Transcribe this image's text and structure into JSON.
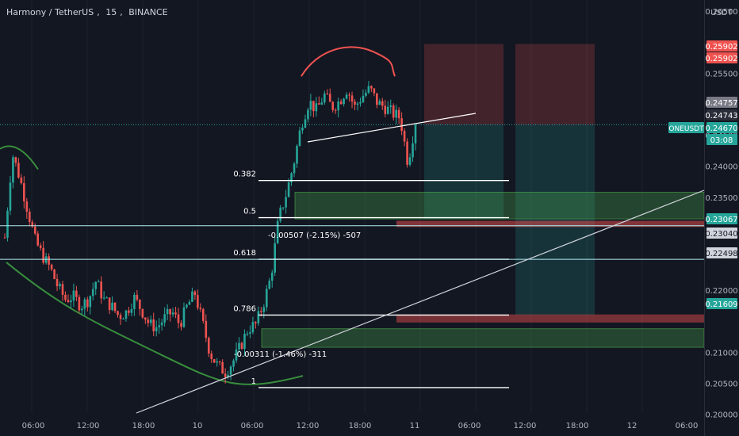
{
  "header": {
    "symbol": "Harmony / TetherUS",
    "interval": "15",
    "exchange": "BINANCE"
  },
  "colors": {
    "background": "#131722",
    "up": "#26a69a",
    "down": "#ef5350",
    "grid": "#1e222d",
    "text": "#b2b5be"
  },
  "price_axis": {
    "currency": "USDT",
    "badges": [
      {
        "text": "0.25902",
        "bg": "#ef5350",
        "fg": "#ffffff"
      },
      {
        "text": "0.25902",
        "bg": "#ef5350",
        "fg": "#ffffff"
      },
      {
        "text": "0.24757",
        "bg": "#787b86",
        "fg": "#ffffff"
      },
      {
        "text": "0.24743",
        "bg": "#2a2e39",
        "fg": "#ffffff"
      },
      {
        "text": "0.24670",
        "bg": "#26a69a",
        "fg": "#ffffff"
      },
      {
        "text": "03:08",
        "bg": "#26a69a",
        "fg": "#ffffff"
      },
      {
        "text": "0.23067",
        "bg": "#26a69a",
        "fg": "#ffffff"
      },
      {
        "text": "0.23040",
        "bg": "#d1d4dc",
        "fg": "#131722"
      },
      {
        "text": "0.22498",
        "bg": "#d1d4dc",
        "fg": "#131722"
      },
      {
        "text": "0.21609",
        "bg": "#26a69a",
        "fg": "#ffffff"
      }
    ],
    "symbol_badge": "ONEUSDT"
  },
  "annotations": {
    "fib_labels": [
      "0.382",
      "0.5",
      "0.618",
      "0.786",
      "1"
    ],
    "measure_1": "-0.00507 (-2.15%) -507",
    "measure_2": "-0.00311 (-1.46%) -311"
  },
  "chart_data": {
    "type": "candlestick",
    "title": "Harmony / TetherUS, 15, BINANCE",
    "ylim": [
      0.1965,
      0.2668
    ],
    "y_ticks": [
      "0.26500",
      "0.25500",
      "0.25000",
      "0.24500",
      "0.24000",
      "0.23500",
      "0.22000",
      "0.21000",
      "0.20500",
      "0.20000"
    ],
    "x_ticks": [
      "06:00",
      "12:00",
      "18:00",
      "10",
      "06:00",
      "12:00",
      "18:00",
      "11",
      "06:00",
      "12:00",
      "18:00",
      "12",
      "06:00"
    ],
    "grid": false,
    "current_price": 0.2467,
    "fib_levels": [
      {
        "ratio": "0.382",
        "price": 0.2377
      },
      {
        "ratio": "0.5",
        "price": 0.2317
      },
      {
        "ratio": "0.618",
        "price": 0.225
      },
      {
        "ratio": "0.786",
        "price": 0.216
      },
      {
        "ratio": "1",
        "price": 0.2043
      }
    ],
    "horizontal_lines": [
      0.2304,
      0.22498
    ],
    "price_path": [
      0.2285,
      0.242,
      0.238,
      0.233,
      0.228,
      0.2255,
      0.2235,
      0.2205,
      0.2185,
      0.219,
      0.2175,
      0.2185,
      0.2215,
      0.2185,
      0.2175,
      0.2158,
      0.2165,
      0.2188,
      0.2168,
      0.2145,
      0.214,
      0.2155,
      0.2165,
      0.2145,
      0.2175,
      0.2195,
      0.2148,
      0.2098,
      0.2078,
      0.2068,
      0.2085,
      0.211,
      0.2138,
      0.2145,
      0.2178,
      0.2222,
      0.2315,
      0.2355,
      0.2405,
      0.2468,
      0.2505,
      0.249,
      0.2515,
      0.2495,
      0.2505,
      0.2525,
      0.2495,
      0.2513,
      0.2525,
      0.2502,
      0.2495,
      0.2485,
      0.2478,
      0.2405,
      0.2472
    ],
    "series": [
      {
        "name": "Harmony / TetherUS"
      }
    ]
  }
}
